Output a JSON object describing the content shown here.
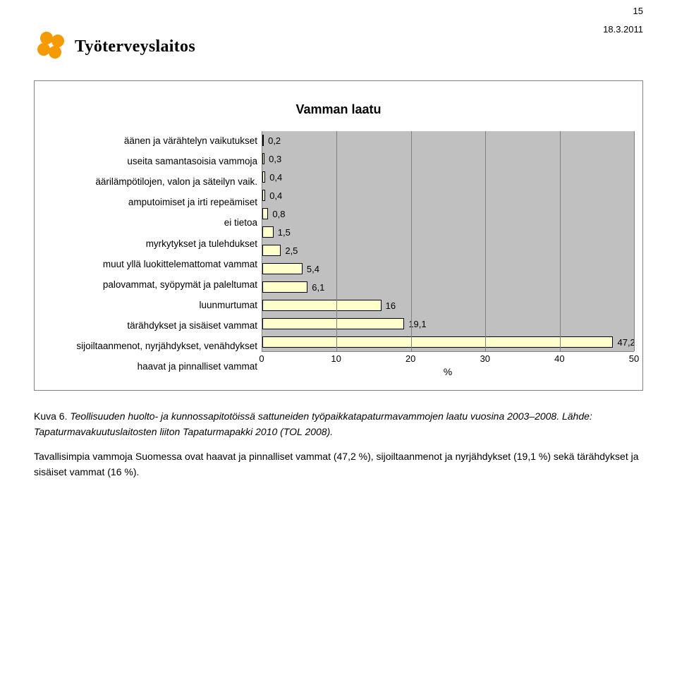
{
  "page_number": "15",
  "date": "18.3.2011",
  "org_name": "Työterveyslaitos",
  "logo_color": "#f59a00",
  "chart": {
    "type": "bar-horizontal",
    "title": "Vamman laatu",
    "xlabel": "%",
    "xlim": [
      0,
      50
    ],
    "xtick_step": 10,
    "xticks": [
      "0",
      "10",
      "20",
      "30",
      "40",
      "50"
    ],
    "plot_bg": "#c0c0c0",
    "grid_color": "#808080",
    "bar_fill": "#ffffcc",
    "bar_border": "#000000",
    "label_fontsize": 13,
    "title_fontsize": 18,
    "categories": [
      {
        "label": "äänen ja värähtelyn vaikutukset",
        "value": 0.2,
        "value_text": "0,2"
      },
      {
        "label": "useita samantasoisia vammoja",
        "value": 0.3,
        "value_text": "0,3"
      },
      {
        "label": "äärilämpötilojen, valon ja säteilyn vaik.",
        "value": 0.4,
        "value_text": "0,4"
      },
      {
        "label": "amputoimiset ja irti repeämiset",
        "value": 0.4,
        "value_text": "0,4"
      },
      {
        "label": "ei tietoa",
        "value": 0.8,
        "value_text": "0,8"
      },
      {
        "label": "myrkytykset ja tulehdukset",
        "value": 1.5,
        "value_text": "1,5"
      },
      {
        "label": "muut yllä luokittelemattomat vammat",
        "value": 2.5,
        "value_text": "2,5"
      },
      {
        "label": "palovammat, syöpymät ja paleltumat",
        "value": 5.4,
        "value_text": "5,4"
      },
      {
        "label": "luunmurtumat",
        "value": 6.1,
        "value_text": "6,1"
      },
      {
        "label": "tärähdykset ja sisäiset vammat",
        "value": 16,
        "value_text": "16"
      },
      {
        "label": "sijoiltaanmenot, nyrjähdykset, venähdykset",
        "value": 19.1,
        "value_text": "19,1"
      },
      {
        "label": "haavat ja pinnalliset vammat",
        "value": 47.2,
        "value_text": "47,2"
      }
    ]
  },
  "caption_prefix": "Kuva 6. ",
  "caption_italic": "Teollisuuden huolto- ja kunnossapitotöissä sattuneiden työpaikkatapaturmavammojen laatu vuosina 2003–2008. Lähde: Tapaturmavakuutuslaitosten liiton Tapaturmapakki 2010 (TOL 2008).",
  "body_paragraph": "Tavallisimpia vammoja Suomessa ovat haavat ja pinnalliset vammat (47,2 %), sijoiltaanmenot ja nyrjähdykset (19,1 %) sekä tärähdykset ja sisäiset vammat (16 %)."
}
